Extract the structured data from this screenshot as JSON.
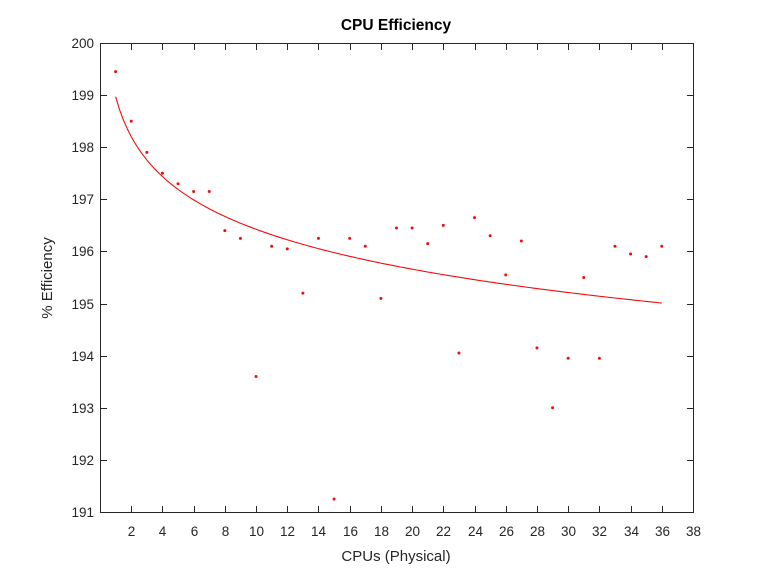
{
  "figure": {
    "background": "#ffffff"
  },
  "chart_data": {
    "type": "scatter",
    "title": "CPU Efficiency",
    "xlabel": "CPUs (Physical)",
    "ylabel": "% Efficiency",
    "xlim": [
      0,
      38
    ],
    "ylim": [
      191,
      200
    ],
    "x_ticks": [
      2,
      4,
      6,
      8,
      10,
      12,
      14,
      16,
      18,
      20,
      22,
      24,
      26,
      28,
      30,
      32,
      34,
      36,
      38
    ],
    "y_ticks": [
      191,
      192,
      193,
      194,
      195,
      196,
      197,
      198,
      199,
      200
    ],
    "grid": false,
    "legend": "none",
    "axis_color": "#262626",
    "marker_color": "#f20d0d",
    "line_color": "#f20d0d",
    "series": [
      {
        "name": "efficiency-points",
        "type": "scatter",
        "marker": "dot",
        "x": [
          1,
          2,
          3,
          4,
          5,
          6,
          7,
          8,
          9,
          10,
          11,
          12,
          13,
          14,
          15,
          16,
          17,
          18,
          19,
          20,
          21,
          22,
          23,
          24,
          25,
          26,
          27,
          28,
          29,
          30,
          31,
          32,
          33,
          34,
          35,
          36
        ],
        "y": [
          199.45,
          198.5,
          197.9,
          197.5,
          197.3,
          197.15,
          197.15,
          196.4,
          196.25,
          193.6,
          196.1,
          196.05,
          195.2,
          196.25,
          191.25,
          196.25,
          196.1,
          195.1,
          196.45,
          196.45,
          196.15,
          196.5,
          194.05,
          196.65,
          196.3,
          195.55,
          196.2,
          194.15,
          193.0,
          193.95,
          195.5,
          193.95,
          196.1,
          195.95,
          195.9,
          196.1
        ]
      },
      {
        "name": "log-fit-curve",
        "type": "line",
        "model": "y = a - b*ln(x)",
        "a": 198.97,
        "b": 1.105,
        "x_range": [
          1,
          36
        ]
      }
    ]
  }
}
